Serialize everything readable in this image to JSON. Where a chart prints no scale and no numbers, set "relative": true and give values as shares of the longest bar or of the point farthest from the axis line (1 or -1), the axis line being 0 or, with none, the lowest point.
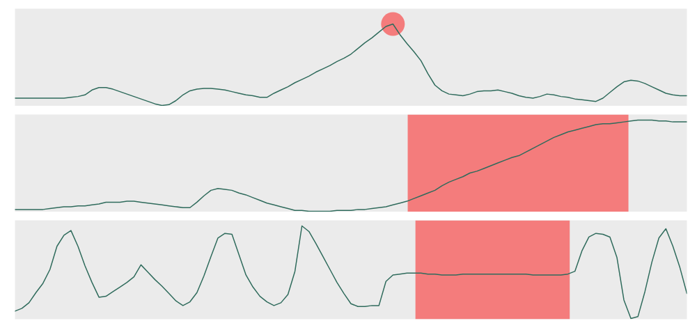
{
  "chart_data": [
    {
      "type": "line",
      "relative": true,
      "categories": [
        null,
        null,
        null,
        null,
        null,
        null,
        null,
        null,
        null,
        null,
        null,
        null,
        null,
        null,
        null,
        null,
        null,
        null,
        null,
        null,
        null,
        null,
        null,
        null,
        null,
        null,
        null,
        null,
        null,
        null,
        null,
        null,
        null,
        null,
        null,
        null,
        null,
        null,
        null,
        null,
        null,
        null,
        null,
        null,
        null,
        null,
        null,
        null,
        null,
        null,
        null,
        null,
        null,
        null,
        null,
        null,
        null,
        null,
        null,
        null,
        null,
        null,
        null,
        null,
        null,
        null,
        null,
        null,
        null,
        null,
        null,
        null,
        null,
        null,
        null,
        null,
        null,
        null,
        null,
        null,
        null,
        null,
        null,
        null,
        null,
        null,
        null,
        null,
        null,
        null,
        null,
        null,
        null,
        null,
        null,
        null,
        null
      ],
      "series": [
        {
          "color": "#2f6b5c",
          "values": [
            0.09,
            0.09,
            0.09,
            0.09,
            0.09,
            0.09,
            0.09,
            0.09,
            0.1,
            0.11,
            0.13,
            0.19,
            0.22,
            0.22,
            0.2,
            0.17,
            0.14,
            0.11,
            0.08,
            0.05,
            0.02,
            0.0,
            0.01,
            0.06,
            0.13,
            0.18,
            0.2,
            0.21,
            0.21,
            0.2,
            0.19,
            0.17,
            0.15,
            0.13,
            0.12,
            0.1,
            0.1,
            0.15,
            0.19,
            0.23,
            0.28,
            0.32,
            0.36,
            0.41,
            0.45,
            0.49,
            0.54,
            0.58,
            0.63,
            0.7,
            0.77,
            0.83,
            0.9,
            0.97,
            1.0,
            0.87,
            0.76,
            0.66,
            0.55,
            0.39,
            0.25,
            0.18,
            0.14,
            0.13,
            0.12,
            0.14,
            0.17,
            0.18,
            0.18,
            0.19,
            0.17,
            0.15,
            0.12,
            0.1,
            0.09,
            0.11,
            0.14,
            0.13,
            0.11,
            0.1,
            0.08,
            0.07,
            0.06,
            0.05,
            0.09,
            0.16,
            0.23,
            0.29,
            0.31,
            0.3,
            0.27,
            0.23,
            0.19,
            0.15,
            0.13,
            0.12,
            0.12
          ]
        },
        {
          "type": "line",
          "marker": "circle",
          "color": "#f47c7c",
          "values": [
            null,
            null,
            null,
            null,
            null,
            null,
            null,
            null,
            null,
            null,
            null,
            null,
            null,
            null,
            null,
            null,
            null,
            null,
            null,
            null,
            null,
            null,
            null,
            null,
            null,
            null,
            null,
            null,
            null,
            null,
            null,
            null,
            null,
            null,
            null,
            null,
            null,
            null,
            null,
            null,
            null,
            null,
            null,
            null,
            null,
            null,
            null,
            null,
            null,
            null,
            null,
            null,
            null,
            null,
            1.0,
            null,
            null,
            null,
            null,
            null,
            null,
            null,
            null,
            null,
            null,
            null,
            null,
            null,
            null,
            null,
            null,
            null,
            null,
            null,
            null,
            null,
            null,
            null,
            null,
            null,
            null,
            null,
            null,
            null,
            null,
            null,
            null,
            null,
            null,
            null,
            null,
            null,
            null,
            null,
            null,
            null,
            null
          ]
        }
      ]
    },
    {
      "type": "line",
      "relative": true,
      "categories": [
        null,
        null,
        null,
        null,
        null,
        null,
        null,
        null,
        null,
        null,
        null,
        null,
        null,
        null,
        null,
        null,
        null,
        null,
        null,
        null,
        null,
        null,
        null,
        null,
        null,
        null,
        null,
        null,
        null,
        null,
        null,
        null,
        null,
        null,
        null,
        null,
        null,
        null,
        null,
        null,
        null,
        null,
        null,
        null,
        null,
        null,
        null,
        null,
        null,
        null,
        null,
        null,
        null,
        null,
        null,
        null,
        null,
        null,
        null,
        null,
        null,
        null,
        null,
        null,
        null,
        null,
        null,
        null,
        null,
        null,
        null,
        null,
        null,
        null,
        null,
        null,
        null,
        null,
        null,
        null,
        null,
        null,
        null,
        null,
        null,
        null,
        null,
        null,
        null,
        null,
        null,
        null,
        null,
        null,
        null,
        null,
        null
      ],
      "series": [
        {
          "color": "#2f6b5c",
          "values": [
            0.02,
            0.02,
            0.02,
            0.02,
            0.02,
            0.03,
            0.04,
            0.05,
            0.05,
            0.06,
            0.06,
            0.07,
            0.08,
            0.1,
            0.1,
            0.1,
            0.11,
            0.11,
            0.1,
            0.09,
            0.08,
            0.07,
            0.06,
            0.05,
            0.04,
            0.04,
            0.1,
            0.17,
            0.23,
            0.25,
            0.24,
            0.23,
            0.2,
            0.18,
            0.15,
            0.12,
            0.09,
            0.07,
            0.05,
            0.03,
            0.01,
            0.01,
            0.0,
            0.0,
            0.0,
            0.0,
            0.01,
            0.01,
            0.01,
            0.02,
            0.02,
            0.03,
            0.04,
            0.05,
            0.07,
            0.09,
            0.11,
            0.14,
            0.17,
            0.2,
            0.23,
            0.28,
            0.32,
            0.35,
            0.38,
            0.42,
            0.44,
            0.47,
            0.5,
            0.53,
            0.56,
            0.59,
            0.61,
            0.65,
            0.69,
            0.73,
            0.77,
            0.81,
            0.84,
            0.87,
            0.89,
            0.91,
            0.93,
            0.95,
            0.96,
            0.96,
            0.97,
            0.98,
            0.99,
            1.0,
            1.0,
            1.0,
            0.99,
            0.99,
            0.98,
            0.98,
            0.98
          ]
        }
      ]
    },
    {
      "type": "line",
      "relative": true,
      "categories": [
        null,
        null,
        null,
        null,
        null,
        null,
        null,
        null,
        null,
        null,
        null,
        null,
        null,
        null,
        null,
        null,
        null,
        null,
        null,
        null,
        null,
        null,
        null,
        null,
        null,
        null,
        null,
        null,
        null,
        null,
        null,
        null,
        null,
        null,
        null,
        null,
        null,
        null,
        null,
        null,
        null,
        null,
        null,
        null,
        null,
        null,
        null,
        null,
        null,
        null,
        null,
        null,
        null,
        null,
        null,
        null,
        null,
        null,
        null,
        null,
        null,
        null,
        null,
        null,
        null,
        null,
        null,
        null,
        null,
        null,
        null,
        null,
        null,
        null,
        null,
        null,
        null,
        null,
        null,
        null,
        null,
        null,
        null,
        null,
        null,
        null,
        null,
        null,
        null,
        null,
        null,
        null,
        null,
        null,
        null,
        null,
        null
      ],
      "series": [
        {
          "color": "#2f6b5c",
          "values": [
            0.08,
            0.11,
            0.17,
            0.28,
            0.38,
            0.53,
            0.78,
            0.9,
            0.95,
            0.78,
            0.57,
            0.39,
            0.23,
            0.24,
            0.29,
            0.34,
            0.39,
            0.45,
            0.58,
            0.5,
            0.42,
            0.35,
            0.27,
            0.19,
            0.14,
            0.18,
            0.28,
            0.46,
            0.67,
            0.87,
            0.92,
            0.91,
            0.69,
            0.47,
            0.34,
            0.24,
            0.18,
            0.14,
            0.17,
            0.26,
            0.51,
            1.0,
            0.94,
            0.81,
            0.67,
            0.53,
            0.39,
            0.27,
            0.16,
            0.13,
            0.13,
            0.14,
            0.14,
            0.4,
            0.47,
            0.48,
            0.49,
            0.49,
            0.49,
            0.48,
            0.48,
            0.47,
            0.47,
            0.47,
            0.48,
            0.48,
            0.48,
            0.48,
            0.48,
            0.48,
            0.48,
            0.48,
            0.48,
            0.48,
            0.47,
            0.47,
            0.47,
            0.47,
            0.47,
            0.48,
            0.51,
            0.73,
            0.88,
            0.92,
            0.91,
            0.88,
            0.66,
            0.2,
            0.0,
            0.02,
            0.29,
            0.61,
            0.87,
            0.97,
            0.78,
            0.55,
            0.27
          ]
        }
      ]
    }
  ]
}
